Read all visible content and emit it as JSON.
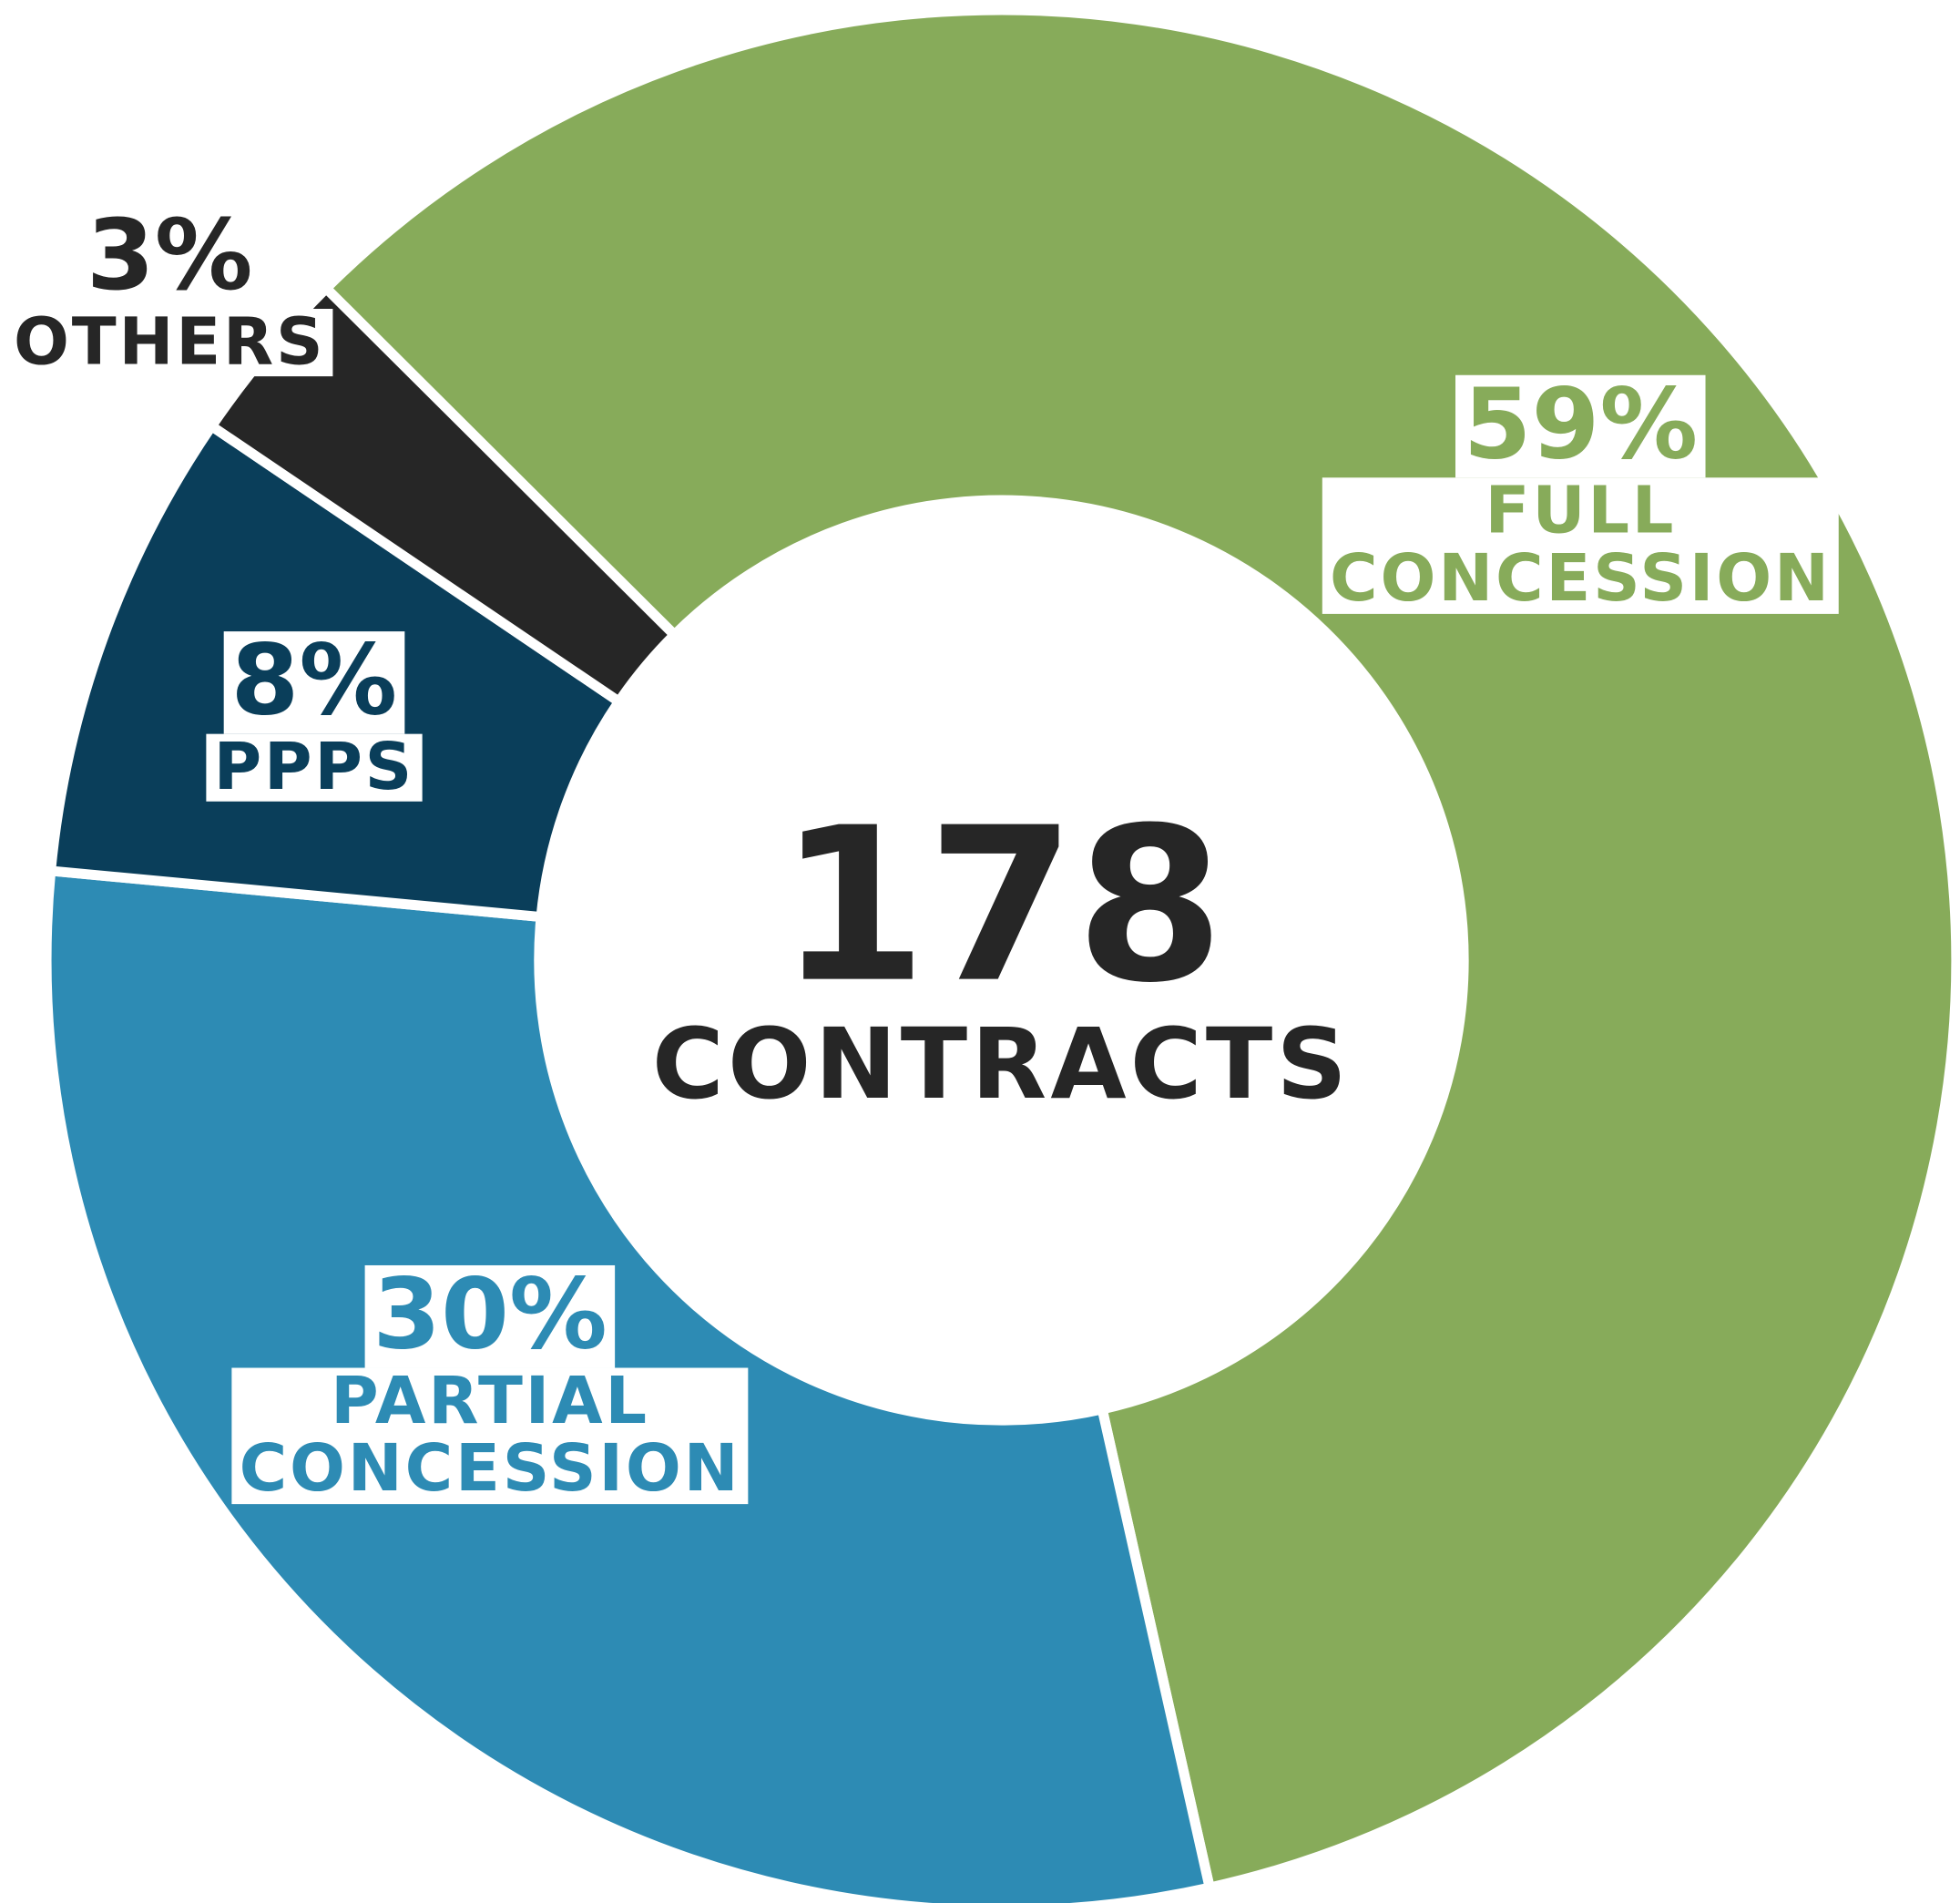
{
  "chart_data": {
    "type": "donut",
    "categories": [
      "FULL CONCESSION",
      "PARTIAL CONCESSION",
      "PPPS",
      "OTHERS"
    ],
    "values": [
      59,
      30,
      8,
      3
    ],
    "value_labels": [
      "59%",
      "30%",
      "8%",
      "3%"
    ],
    "colors": [
      "#87ab5a",
      "#2d8bb4",
      "#0a3e5a",
      "#262626"
    ],
    "center_value": 178,
    "center_label": "CONTRACTS"
  }
}
